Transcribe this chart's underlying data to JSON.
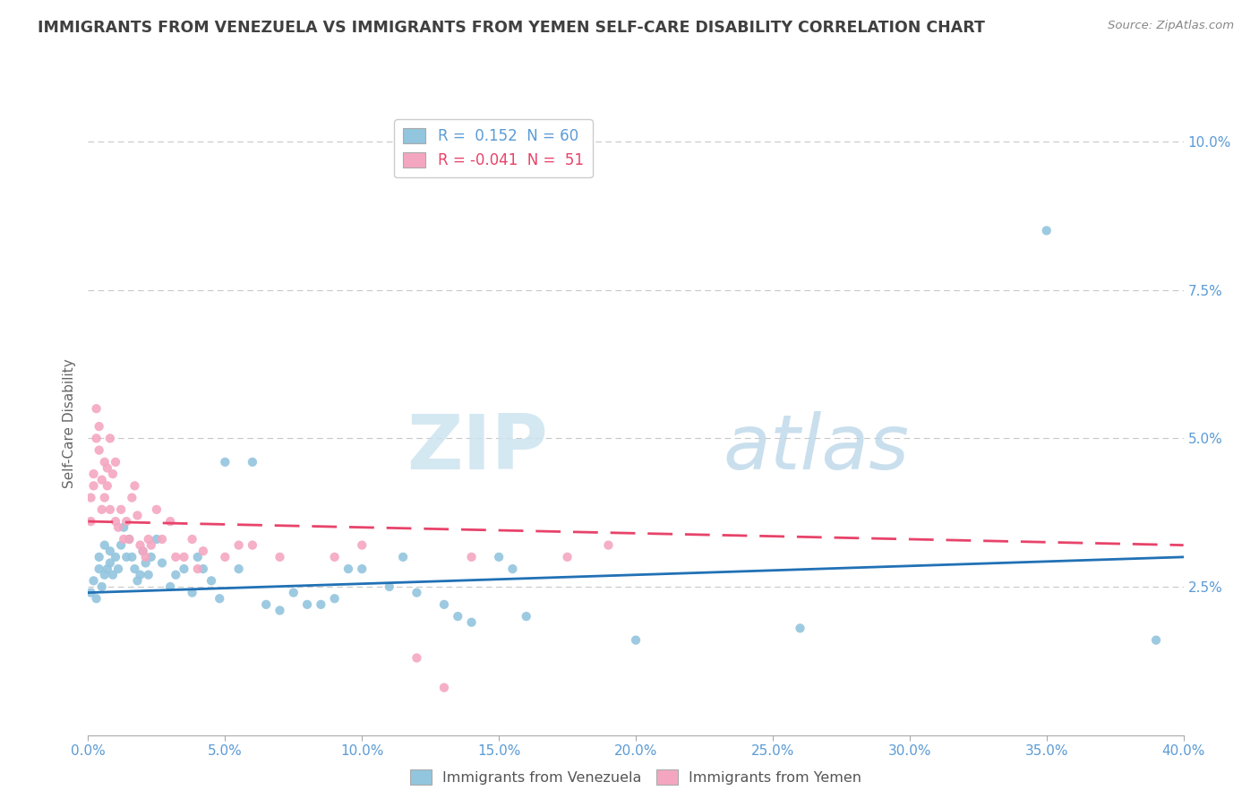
{
  "title": "IMMIGRANTS FROM VENEZUELA VS IMMIGRANTS FROM YEMEN SELF-CARE DISABILITY CORRELATION CHART",
  "source": "Source: ZipAtlas.com",
  "ylabel": "Self-Care Disability",
  "xlim": [
    0.0,
    0.4
  ],
  "ylim": [
    0.0,
    0.105
  ],
  "yticks": [
    0.025,
    0.05,
    0.075,
    0.1
  ],
  "ytick_labels": [
    "2.5%",
    "5.0%",
    "7.5%",
    "10.0%"
  ],
  "legend_r_venezuela": " 0.152",
  "legend_n_venezuela": "60",
  "legend_r_yemen": "-0.041",
  "legend_n_yemen": "51",
  "color_venezuela": "#92c5de",
  "color_yemen": "#f4a6c0",
  "color_trend_venezuela": "#2171b5",
  "color_trend_yemen": "#e8436a",
  "venezuela_points": [
    [
      0.001,
      0.024
    ],
    [
      0.002,
      0.026
    ],
    [
      0.003,
      0.023
    ],
    [
      0.004,
      0.028
    ],
    [
      0.004,
      0.03
    ],
    [
      0.005,
      0.025
    ],
    [
      0.006,
      0.027
    ],
    [
      0.006,
      0.032
    ],
    [
      0.007,
      0.028
    ],
    [
      0.008,
      0.029
    ],
    [
      0.008,
      0.031
    ],
    [
      0.009,
      0.027
    ],
    [
      0.01,
      0.03
    ],
    [
      0.011,
      0.028
    ],
    [
      0.012,
      0.032
    ],
    [
      0.013,
      0.035
    ],
    [
      0.014,
      0.03
    ],
    [
      0.015,
      0.033
    ],
    [
      0.016,
      0.03
    ],
    [
      0.017,
      0.028
    ],
    [
      0.018,
      0.026
    ],
    [
      0.019,
      0.027
    ],
    [
      0.02,
      0.031
    ],
    [
      0.021,
      0.029
    ],
    [
      0.022,
      0.027
    ],
    [
      0.023,
      0.03
    ],
    [
      0.025,
      0.033
    ],
    [
      0.027,
      0.029
    ],
    [
      0.03,
      0.025
    ],
    [
      0.032,
      0.027
    ],
    [
      0.035,
      0.028
    ],
    [
      0.038,
      0.024
    ],
    [
      0.04,
      0.03
    ],
    [
      0.042,
      0.028
    ],
    [
      0.045,
      0.026
    ],
    [
      0.048,
      0.023
    ],
    [
      0.05,
      0.046
    ],
    [
      0.055,
      0.028
    ],
    [
      0.06,
      0.046
    ],
    [
      0.065,
      0.022
    ],
    [
      0.07,
      0.021
    ],
    [
      0.075,
      0.024
    ],
    [
      0.08,
      0.022
    ],
    [
      0.085,
      0.022
    ],
    [
      0.09,
      0.023
    ],
    [
      0.095,
      0.028
    ],
    [
      0.1,
      0.028
    ],
    [
      0.11,
      0.025
    ],
    [
      0.115,
      0.03
    ],
    [
      0.12,
      0.024
    ],
    [
      0.13,
      0.022
    ],
    [
      0.135,
      0.02
    ],
    [
      0.14,
      0.019
    ],
    [
      0.15,
      0.03
    ],
    [
      0.155,
      0.028
    ],
    [
      0.16,
      0.02
    ],
    [
      0.2,
      0.016
    ],
    [
      0.26,
      0.018
    ],
    [
      0.35,
      0.085
    ],
    [
      0.39,
      0.016
    ]
  ],
  "yemen_points": [
    [
      0.001,
      0.036
    ],
    [
      0.001,
      0.04
    ],
    [
      0.002,
      0.042
    ],
    [
      0.002,
      0.044
    ],
    [
      0.003,
      0.05
    ],
    [
      0.003,
      0.055
    ],
    [
      0.004,
      0.048
    ],
    [
      0.004,
      0.052
    ],
    [
      0.005,
      0.038
    ],
    [
      0.005,
      0.043
    ],
    [
      0.006,
      0.046
    ],
    [
      0.006,
      0.04
    ],
    [
      0.007,
      0.042
    ],
    [
      0.007,
      0.045
    ],
    [
      0.008,
      0.038
    ],
    [
      0.008,
      0.05
    ],
    [
      0.009,
      0.044
    ],
    [
      0.01,
      0.046
    ],
    [
      0.01,
      0.036
    ],
    [
      0.011,
      0.035
    ],
    [
      0.012,
      0.038
    ],
    [
      0.013,
      0.033
    ],
    [
      0.014,
      0.036
    ],
    [
      0.015,
      0.033
    ],
    [
      0.016,
      0.04
    ],
    [
      0.017,
      0.042
    ],
    [
      0.018,
      0.037
    ],
    [
      0.019,
      0.032
    ],
    [
      0.02,
      0.031
    ],
    [
      0.021,
      0.03
    ],
    [
      0.022,
      0.033
    ],
    [
      0.023,
      0.032
    ],
    [
      0.025,
      0.038
    ],
    [
      0.027,
      0.033
    ],
    [
      0.03,
      0.036
    ],
    [
      0.032,
      0.03
    ],
    [
      0.035,
      0.03
    ],
    [
      0.038,
      0.033
    ],
    [
      0.04,
      0.028
    ],
    [
      0.042,
      0.031
    ],
    [
      0.05,
      0.03
    ],
    [
      0.055,
      0.032
    ],
    [
      0.06,
      0.032
    ],
    [
      0.07,
      0.03
    ],
    [
      0.09,
      0.03
    ],
    [
      0.1,
      0.032
    ],
    [
      0.12,
      0.013
    ],
    [
      0.13,
      0.008
    ],
    [
      0.14,
      0.03
    ],
    [
      0.175,
      0.03
    ],
    [
      0.19,
      0.032
    ]
  ]
}
